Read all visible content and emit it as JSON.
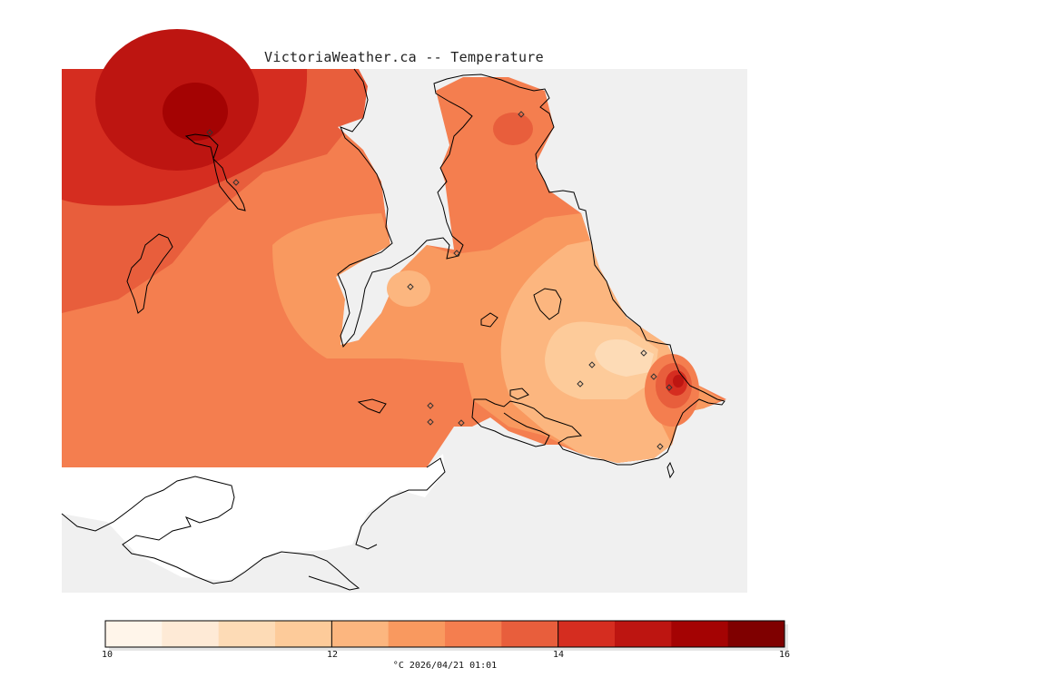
{
  "title": "VictoriaWeather.ca -- Temperature",
  "legend": {
    "min_label": "10",
    "mid_labels": [
      "12",
      "14"
    ],
    "max_label": "16",
    "units_and_time": "°C  2026/04/21 01:01",
    "bins_celsius": [
      10,
      10.5,
      11,
      11.5,
      12,
      12.5,
      13,
      13.5,
      14,
      14.5,
      15,
      15.5,
      16
    ],
    "colors": [
      "#fff5ea",
      "#feead6",
      "#fddbb6",
      "#fdcb9a",
      "#fcb67f",
      "#f9995f",
      "#f47e4f",
      "#e85e3c",
      "#d52d20",
      "#bd1511",
      "#a40303",
      "#7f0000"
    ]
  },
  "map": {
    "land_color": "#f0f0f0",
    "water_color": "#ffffff",
    "coastline_color": "#000000",
    "station_marker": "diamond-icon",
    "station_count": 14
  }
}
